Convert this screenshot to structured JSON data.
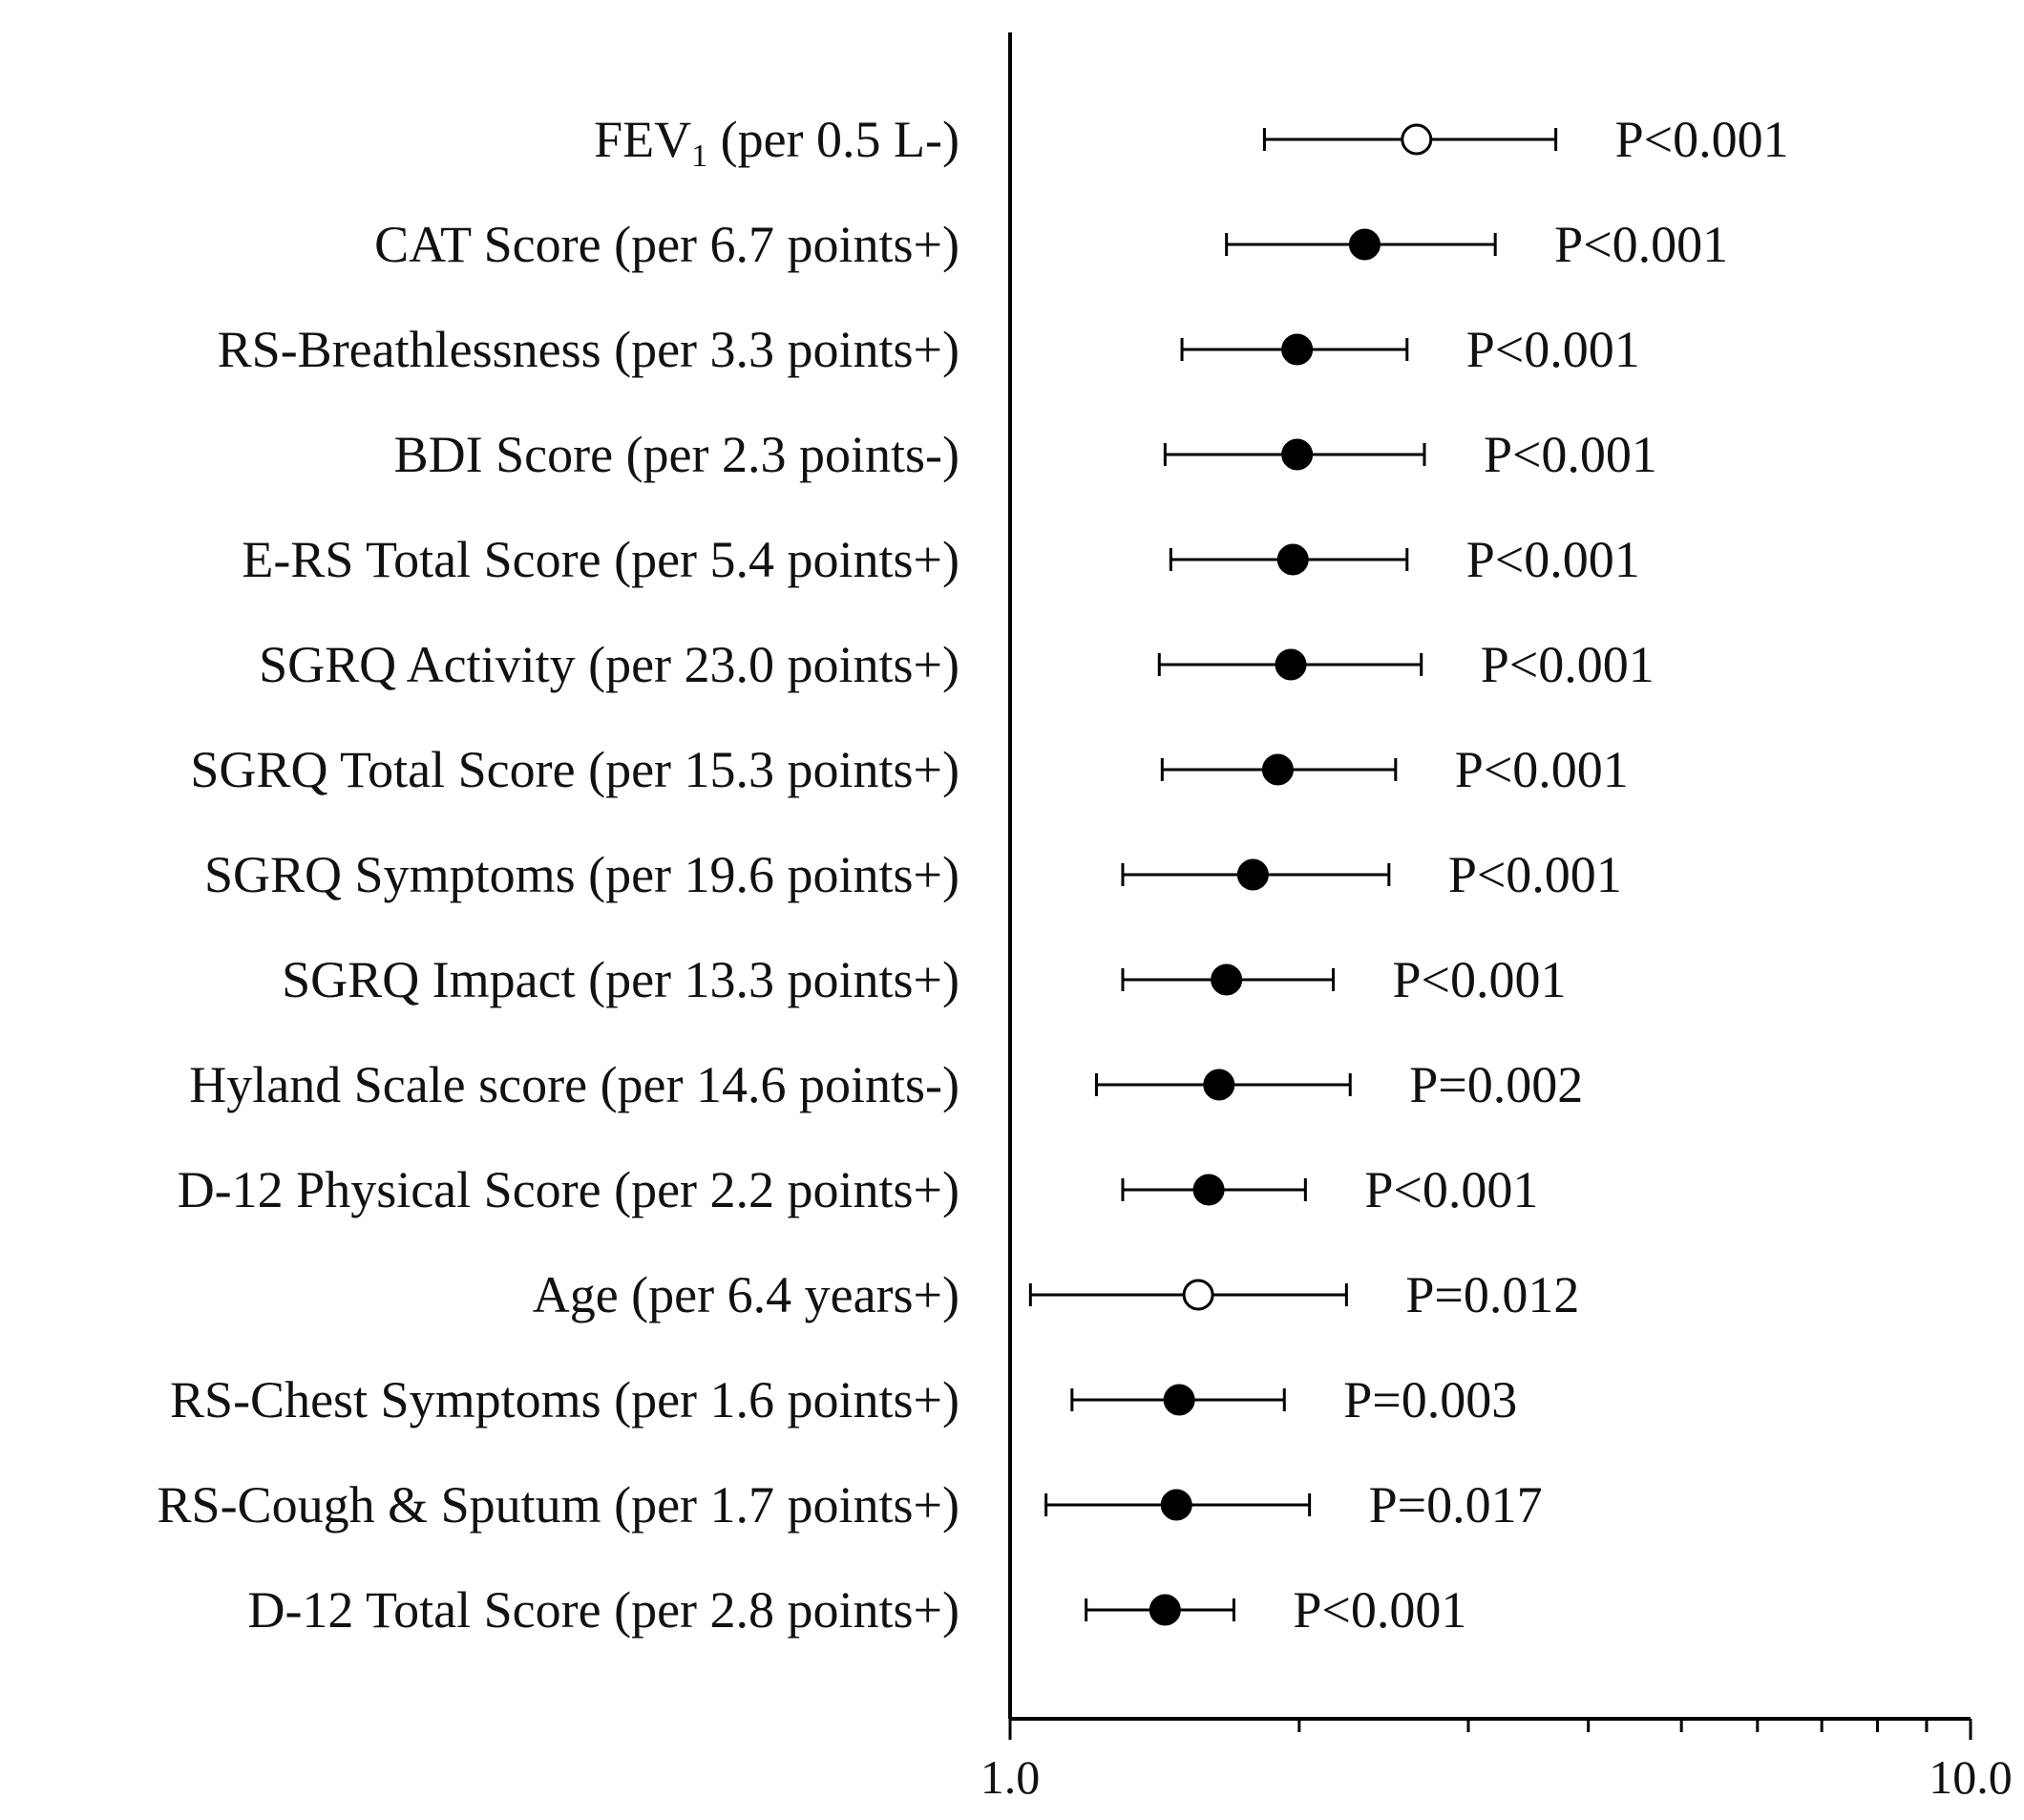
{
  "chart_data": {
    "type": "forest",
    "title": "",
    "xlabel": "",
    "ylabel": "",
    "xscale": "log",
    "xlim": [
      1.0,
      10.0
    ],
    "xticks": [
      1,
      2,
      3,
      4,
      5,
      6,
      7,
      8,
      9,
      10
    ],
    "xtick_labels": [
      {
        "value": 1,
        "label": "1.0"
      },
      {
        "value": 10,
        "label": "10.0"
      }
    ],
    "rows": [
      {
        "label": "FEV",
        "sub": "1",
        "suffix": " (per 0.5 L-)",
        "estimate": 2.65,
        "lower": 1.84,
        "upper": 3.7,
        "p": "P<0.001",
        "filled": false
      },
      {
        "label": "CAT Score (per 6.7 points+)",
        "sub": "",
        "suffix": "",
        "estimate": 2.34,
        "lower": 1.68,
        "upper": 3.2,
        "p": "P<0.001",
        "filled": true
      },
      {
        "label": "RS-Breathlessness (per 3.3 points+)",
        "sub": "",
        "suffix": "",
        "estimate": 1.99,
        "lower": 1.51,
        "upper": 2.59,
        "p": "P<0.001",
        "filled": true
      },
      {
        "label": "BDI Score (per 2.3 points-)",
        "sub": "",
        "suffix": "",
        "estimate": 1.99,
        "lower": 1.45,
        "upper": 2.7,
        "p": "P<0.001",
        "filled": true
      },
      {
        "label": "E-RS Total Score (per 5.4 points+)",
        "sub": "",
        "suffix": "",
        "estimate": 1.97,
        "lower": 1.47,
        "upper": 2.59,
        "p": "P<0.001",
        "filled": true
      },
      {
        "label": "SGRQ Activity (per 23.0 points+)",
        "sub": "",
        "suffix": "",
        "estimate": 1.96,
        "lower": 1.43,
        "upper": 2.68,
        "p": "P<0.001",
        "filled": true
      },
      {
        "label": "SGRQ Total Score (per 15.3 points+)",
        "sub": "",
        "suffix": "",
        "estimate": 1.9,
        "lower": 1.44,
        "upper": 2.52,
        "p": "P<0.001",
        "filled": true
      },
      {
        "label": "SGRQ Symptoms (per 19.6 points+)",
        "sub": "",
        "suffix": "",
        "estimate": 1.79,
        "lower": 1.31,
        "upper": 2.48,
        "p": "P<0.001",
        "filled": true
      },
      {
        "label": "SGRQ Impact (per 13.3 points+)",
        "sub": "",
        "suffix": "",
        "estimate": 1.68,
        "lower": 1.31,
        "upper": 2.17,
        "p": "P<0.001",
        "filled": true
      },
      {
        "label": "Hyland Scale score (per 14.6 points-)",
        "sub": "",
        "suffix": "",
        "estimate": 1.65,
        "lower": 1.23,
        "upper": 2.26,
        "p": "P=0.002",
        "filled": true
      },
      {
        "label": "D-12 Physical Score (per 2.2 points+)",
        "sub": "",
        "suffix": "",
        "estimate": 1.61,
        "lower": 1.31,
        "upper": 2.03,
        "p": "P<0.001",
        "filled": true
      },
      {
        "label": "Age (per 6.4 years+)",
        "sub": "",
        "suffix": "",
        "estimate": 1.57,
        "lower": 1.05,
        "upper": 2.24,
        "p": "P=0.012",
        "filled": false
      },
      {
        "label": "RS-Chest Symptoms (per 1.6 points+)",
        "sub": "",
        "suffix": "",
        "estimate": 1.5,
        "lower": 1.16,
        "upper": 1.93,
        "p": "P=0.003",
        "filled": true
      },
      {
        "label": "RS-Cough & Sputum (per 1.7 points+)",
        "sub": "",
        "suffix": "",
        "estimate": 1.49,
        "lower": 1.09,
        "upper": 2.05,
        "p": "P=0.017",
        "filled": true
      },
      {
        "label": "D-12 Total Score (per 2.8 points+)",
        "sub": "",
        "suffix": "",
        "estimate": 1.45,
        "lower": 1.2,
        "upper": 1.71,
        "p": "P<0.001",
        "filled": true
      }
    ]
  }
}
